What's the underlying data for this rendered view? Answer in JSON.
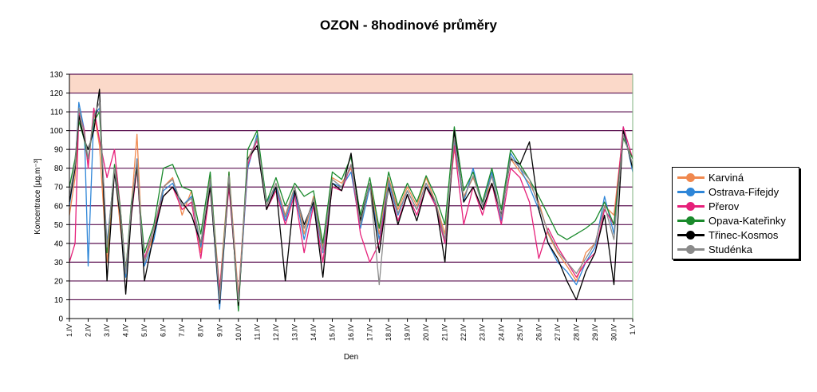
{
  "chart_data": {
    "type": "line",
    "title": "OZON - 8hodinové průměry",
    "xlabel": "Den",
    "ylabel": "Koncentrace [µg.m⁻³]",
    "ylim": [
      0,
      130
    ],
    "yticks": [
      0,
      10,
      20,
      30,
      40,
      50,
      60,
      70,
      80,
      90,
      100,
      110,
      120,
      130
    ],
    "xlim": [
      1,
      31
    ],
    "xtick_labels": [
      "1.IV",
      "2.IV",
      "3.IV",
      "4.IV",
      "5.IV",
      "6.IV",
      "7.IV",
      "8.IV",
      "9.IV",
      "10.IV",
      "11.IV",
      "12.IV",
      "13.IV",
      "14.IV",
      "15.IV",
      "16.IV",
      "17.IV",
      "18.IV",
      "19.IV",
      "20.IV",
      "21.IV",
      "22.IV",
      "23.IV",
      "24.IV",
      "25.IV",
      "26.IV",
      "27.IV",
      "28.IV",
      "29.IV",
      "30.IV",
      "1.V"
    ],
    "threshold_band": {
      "from": 120,
      "to": 130,
      "color": "#fbd9c9"
    },
    "grid": "horizontal",
    "grid_color": "#5a1050",
    "legend_position": "right",
    "series": [
      {
        "name": "Karviná",
        "color": "#f0884e",
        "x": [
          1,
          1.3,
          1.5,
          1.8,
          2,
          2.3,
          2.6,
          3,
          3.4,
          3.7,
          4,
          4.3,
          4.6,
          4.8,
          5,
          5.5,
          6,
          6.5,
          7,
          7.5,
          8,
          8.5,
          9,
          9.5,
          10,
          10.5,
          11,
          11.5,
          12,
          12.5,
          13,
          13.5,
          14,
          14.5,
          15,
          15.5,
          16,
          16.5,
          17,
          17.5,
          18,
          18.5,
          19,
          19.5,
          20,
          20.5,
          21,
          21.5,
          22,
          22.5,
          23,
          23.5,
          24,
          24.5,
          25,
          25.5,
          26,
          26.5,
          27,
          27.5,
          28,
          28.5,
          29,
          29.5,
          30,
          30.5,
          31
        ],
        "y": [
          55,
          75,
          108,
          95,
          82,
          110,
          92,
          30,
          80,
          50,
          25,
          60,
          98,
          55,
          30,
          45,
          70,
          75,
          55,
          68,
          35,
          75,
          15,
          78,
          12,
          85,
          95,
          60,
          72,
          55,
          70,
          45,
          65,
          38,
          75,
          72,
          80,
          50,
          72,
          45,
          75,
          58,
          70,
          60,
          75,
          62,
          45,
          90,
          65,
          75,
          62,
          72,
          55,
          85,
          78,
          72,
          62,
          45,
          35,
          28,
          20,
          35,
          40,
          60,
          55,
          100,
          80
        ]
      },
      {
        "name": "Ostrava-Fifejdy",
        "color": "#2e86d8",
        "x": [
          1,
          1.3,
          1.5,
          1.8,
          2,
          2.3,
          2.6,
          3,
          3.4,
          3.7,
          4,
          4.3,
          4.6,
          4.8,
          5,
          5.5,
          6,
          6.5,
          7,
          7.5,
          8,
          8.5,
          9,
          9.5,
          10,
          10.5,
          11,
          11.5,
          12,
          12.5,
          13,
          13.5,
          14,
          14.5,
          15,
          15.5,
          16,
          16.5,
          17,
          17.5,
          18,
          18.5,
          19,
          19.5,
          20,
          20.5,
          21,
          21.5,
          22,
          22.5,
          23,
          23.5,
          24,
          24.5,
          25,
          25.5,
          26,
          26.5,
          27,
          27.5,
          28,
          28.5,
          29,
          29.5,
          30,
          30.5,
          31
        ],
        "y": [
          60,
          80,
          115,
          100,
          28,
          108,
          112,
          40,
          78,
          55,
          22,
          58,
          85,
          50,
          28,
          42,
          68,
          72,
          60,
          65,
          38,
          72,
          5,
          75,
          8,
          80,
          98,
          62,
          70,
          52,
          68,
          42,
          62,
          35,
          72,
          70,
          78,
          48,
          70,
          42,
          72,
          55,
          68,
          58,
          72,
          60,
          40,
          95,
          62,
          80,
          60,
          78,
          52,
          88,
          80,
          70,
          58,
          40,
          30,
          25,
          18,
          30,
          38,
          65,
          45,
          102,
          78
        ]
      },
      {
        "name": "Přerov",
        "color": "#e6207a",
        "x": [
          1,
          1.3,
          1.5,
          1.8,
          2,
          2.3,
          2.6,
          3,
          3.4,
          3.7,
          4,
          4.3,
          4.6,
          4.8,
          5,
          5.5,
          6,
          6.5,
          7,
          7.5,
          8,
          8.5,
          9,
          9.5,
          10,
          10.5,
          11,
          11.5,
          12,
          12.5,
          13,
          13.5,
          14,
          14.5,
          15,
          15.5,
          16,
          16.5,
          17,
          17.5,
          18,
          18.5,
          19,
          19.5,
          20,
          20.5,
          21,
          21.5,
          22,
          22.5,
          23,
          23.5,
          24,
          24.5,
          25,
          25.5,
          26,
          26.5,
          27,
          27.5,
          28,
          28.5,
          29,
          29.5,
          30,
          30.5,
          31
        ],
        "y": [
          30,
          40,
          110,
          100,
          80,
          112,
          95,
          75,
          90,
          60,
          25,
          55,
          80,
          50,
          32,
          48,
          65,
          70,
          58,
          62,
          32,
          70,
          15,
          70,
          10,
          82,
          95,
          58,
          68,
          50,
          66,
          35,
          60,
          30,
          70,
          68,
          82,
          45,
          30,
          40,
          70,
          52,
          66,
          55,
          70,
          60,
          40,
          92,
          50,
          70,
          55,
          72,
          50,
          80,
          75,
          62,
          32,
          48,
          38,
          30,
          22,
          30,
          35,
          58,
          50,
          102,
          85
        ]
      },
      {
        "name": "Opava-Kateřinky",
        "color": "#1a8a2c",
        "x": [
          1,
          1.3,
          1.5,
          1.8,
          2,
          2.3,
          2.6,
          3,
          3.4,
          3.7,
          4,
          4.3,
          4.6,
          4.8,
          5,
          5.5,
          6,
          6.5,
          7,
          7.5,
          8,
          8.5,
          9,
          9.5,
          10,
          10.5,
          11,
          11.5,
          12,
          12.5,
          13,
          13.5,
          14,
          14.5,
          15,
          15.5,
          16,
          16.5,
          17,
          17.5,
          18,
          18.5,
          19,
          19.5,
          20,
          20.5,
          21,
          21.5,
          22,
          22.5,
          23,
          23.5,
          24,
          24.5,
          25,
          25.5,
          26,
          26.5,
          27,
          27.5,
          28,
          28.5,
          29,
          29.5,
          30,
          30.5,
          31
        ],
        "y": [
          70,
          85,
          105,
          95,
          85,
          105,
          110,
          35,
          82,
          60,
          25,
          62,
          80,
          55,
          35,
          50,
          80,
          82,
          70,
          68,
          45,
          78,
          10,
          78,
          4,
          90,
          100,
          62,
          75,
          60,
          72,
          65,
          68,
          40,
          78,
          74,
          86,
          55,
          75,
          48,
          78,
          60,
          72,
          62,
          76,
          65,
          50,
          102,
          68,
          78,
          62,
          80,
          58,
          90,
          82,
          74,
          65,
          55,
          45,
          42,
          45,
          48,
          52,
          62,
          50,
          96,
          85
        ]
      },
      {
        "name": "Třinec-Kosmos",
        "color": "#000000",
        "x": [
          1,
          1.3,
          1.5,
          1.8,
          2,
          2.3,
          2.6,
          3,
          3.4,
          3.7,
          4,
          4.3,
          4.6,
          4.8,
          5,
          5.5,
          6,
          6.5,
          7,
          7.5,
          8,
          8.5,
          9,
          9.5,
          10,
          10.5,
          11,
          11.5,
          12,
          12.5,
          13,
          13.5,
          14,
          14.5,
          15,
          15.5,
          16,
          16.5,
          17,
          17.5,
          18,
          18.5,
          19,
          19.5,
          20,
          20.5,
          21,
          21.5,
          22,
          22.5,
          23,
          23.5,
          24,
          24.5,
          25,
          25.5,
          26,
          26.5,
          27,
          27.5,
          28,
          28.5,
          29,
          29.5,
          30,
          30.5,
          31
        ],
        "y": [
          62,
          80,
          108,
          95,
          90,
          100,
          122,
          20,
          78,
          55,
          13,
          56,
          82,
          50,
          20,
          45,
          65,
          70,
          62,
          55,
          40,
          70,
          8,
          74,
          7,
          85,
          92,
          58,
          70,
          20,
          68,
          50,
          62,
          22,
          72,
          68,
          88,
          52,
          72,
          35,
          70,
          50,
          66,
          52,
          70,
          62,
          30,
          100,
          62,
          70,
          58,
          72,
          55,
          85,
          82,
          94,
          58,
          40,
          32,
          20,
          10,
          25,
          35,
          55,
          18,
          100,
          80
        ]
      },
      {
        "name": "Studénka",
        "color": "#8a8a8a",
        "x": [
          1,
          1.3,
          1.5,
          1.8,
          2,
          2.3,
          2.6,
          3,
          3.4,
          3.7,
          4,
          4.3,
          4.6,
          4.8,
          5,
          5.5,
          6,
          6.5,
          7,
          7.5,
          8,
          8.5,
          9,
          9.5,
          10,
          10.5,
          11,
          11.5,
          12,
          12.5,
          13,
          13.5,
          14,
          14.5,
          15,
          15.5,
          16,
          16.5,
          17,
          17.5,
          18,
          18.5,
          19,
          19.5,
          20,
          20.5,
          21,
          21.5,
          22,
          22.5,
          23,
          23.5,
          24,
          24.5,
          25,
          25.5,
          26,
          26.5,
          27,
          27.5,
          28,
          28.5,
          29,
          29.5,
          30,
          30.5,
          31
        ],
        "y": [
          65,
          82,
          112,
          98,
          85,
          108,
          115,
          38,
          80,
          58,
          24,
          60,
          84,
          52,
          30,
          48,
          70,
          74,
          60,
          64,
          40,
          74,
          10,
          76,
          9,
          84,
          96,
          60,
          72,
          54,
          70,
          48,
          64,
          36,
          74,
          70,
          82,
          50,
          72,
          18,
          74,
          56,
          68,
          58,
          72,
          62,
          42,
          96,
          64,
          76,
          60,
          76,
          54,
          86,
          80,
          74,
          60,
          46,
          36,
          30,
          24,
          32,
          40,
          60,
          42,
          98,
          82
        ]
      }
    ]
  }
}
